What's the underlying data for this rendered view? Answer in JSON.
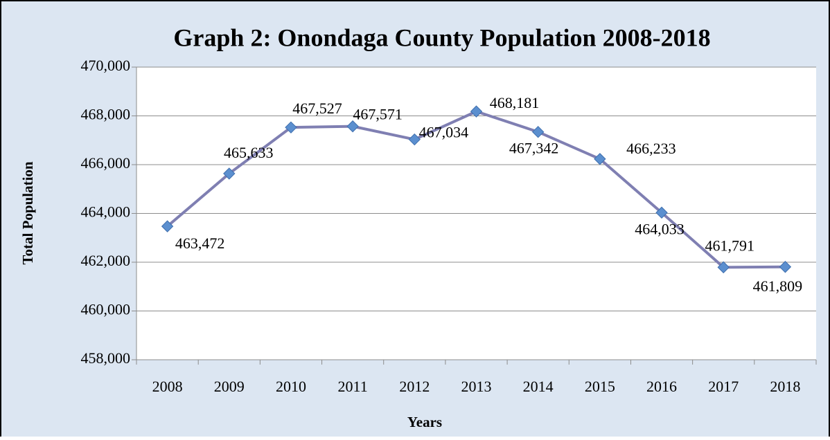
{
  "chart_data": {
    "type": "line",
    "title": "Graph 2:  Onondaga County Population 2008-2018",
    "x_label": "Years",
    "y_label": "Total Population",
    "categories": [
      "2008",
      "2009",
      "2010",
      "2011",
      "2012",
      "2013",
      "2014",
      "2015",
      "2016",
      "2017",
      "2018"
    ],
    "series": [
      {
        "name": "Total Population",
        "color": "#7f7fb2",
        "marker_color": "#5b8fcf",
        "values": [
          463472,
          465633,
          467527,
          467571,
          467034,
          468181,
          467342,
          466233,
          464033,
          461791,
          461809
        ],
        "value_labels": [
          "463,472",
          "465,633",
          "467,527",
          "467,571",
          "467,034",
          "468,181",
          "467,342",
          "466,233",
          "464,033",
          "461,791",
          "461,809"
        ]
      }
    ],
    "ylim": [
      458000,
      470000
    ],
    "yticks": [
      {
        "value": 458000,
        "label": "458,000"
      },
      {
        "value": 460000,
        "label": "460,000"
      },
      {
        "value": 462000,
        "label": "462,000"
      },
      {
        "value": 464000,
        "label": "464,000"
      },
      {
        "value": 466000,
        "label": "466,000"
      },
      {
        "value": 468000,
        "label": "468,000"
      },
      {
        "value": 470000,
        "label": "470,000"
      }
    ],
    "grid": true
  }
}
